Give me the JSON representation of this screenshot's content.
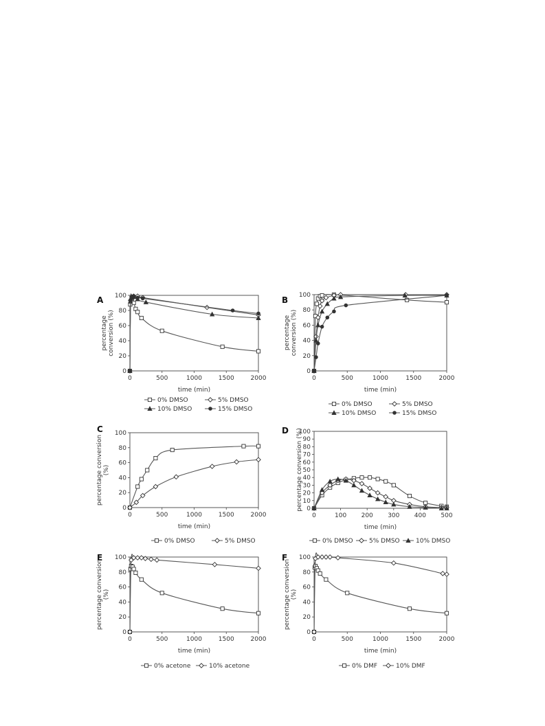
{
  "chart_data": [
    {
      "panel": "A",
      "type": "line",
      "xlabel": "time (min)",
      "ylabel": [
        "percentage",
        "conversion (%)"
      ],
      "xlim": [
        0,
        2000
      ],
      "ylim": [
        0,
        100
      ],
      "xticks": [
        0,
        500,
        1000,
        1500,
        2000
      ],
      "yticks": [
        0,
        20,
        40,
        60,
        80,
        100
      ],
      "legend": "bottom",
      "series": [
        {
          "name": "0% DMSO",
          "marker": "square",
          "x": [
            0,
            5,
            15,
            30,
            60,
            90,
            120,
            180,
            500,
            1440,
            2000
          ],
          "y": [
            0,
            88,
            92,
            92,
            90,
            82,
            78,
            70,
            53,
            32,
            26
          ]
        },
        {
          "name": "5% DMSO",
          "marker": "diamond",
          "x": [
            0,
            10,
            30,
            60,
            120,
            200,
            1200,
            2000
          ],
          "y": [
            0,
            93,
            98,
            99,
            99,
            97,
            84,
            74
          ]
        },
        {
          "name": "10% DMSO",
          "marker": "triangle",
          "x": [
            0,
            10,
            30,
            60,
            120,
            250,
            1280,
            2000
          ],
          "y": [
            0,
            92,
            97,
            98,
            95,
            91,
            75,
            70
          ]
        },
        {
          "name": "15% DMSO",
          "marker": "dot",
          "x": [
            0,
            10,
            30,
            60,
            120,
            200,
            1600,
            2000
          ],
          "y": [
            0,
            94,
            98,
            99,
            97,
            96,
            80,
            76
          ]
        }
      ]
    },
    {
      "panel": "B",
      "type": "line",
      "xlabel": "time (min)",
      "ylabel": [
        "percentage",
        "conversion (%)"
      ],
      "xlim": [
        0,
        2000
      ],
      "ylim": [
        0,
        100
      ],
      "xticks": [
        0,
        500,
        1000,
        1500,
        2000
      ],
      "yticks": [
        0,
        20,
        40,
        60,
        80,
        100
      ],
      "legend": "bottom",
      "series": [
        {
          "name": "0% DMSO",
          "marker": "square",
          "x": [
            0,
            20,
            40,
            60,
            90,
            120,
            300,
            1400,
            2000
          ],
          "y": [
            0,
            72,
            88,
            95,
            98,
            99,
            100,
            93,
            90
          ]
        },
        {
          "name": "5% DMSO",
          "marker": "diamond",
          "x": [
            0,
            30,
            60,
            90,
            120,
            180,
            300,
            400,
            1380,
            2000
          ],
          "y": [
            0,
            45,
            70,
            85,
            92,
            96,
            99,
            100,
            100,
            100
          ]
        },
        {
          "name": "10% DMSO",
          "marker": "triangle",
          "x": [
            0,
            30,
            60,
            120,
            200,
            300,
            400,
            1370,
            2000
          ],
          "y": [
            0,
            40,
            60,
            78,
            88,
            95,
            97,
            99,
            99
          ]
        },
        {
          "name": "15% DMSO",
          "marker": "dot",
          "x": [
            0,
            30,
            60,
            120,
            200,
            300,
            480,
            2000
          ],
          "y": [
            0,
            18,
            36,
            58,
            70,
            78,
            86,
            99
          ]
        }
      ]
    },
    {
      "panel": "C",
      "type": "line",
      "xlabel": "time (min)",
      "ylabel": [
        "percentage conversion",
        "(%)"
      ],
      "xlim": [
        0,
        2000
      ],
      "ylim": [
        0,
        100
      ],
      "xticks": [
        0,
        500,
        1000,
        1500,
        2000
      ],
      "yticks": [
        0,
        20,
        40,
        60,
        80,
        100
      ],
      "legend": "bottom",
      "series": [
        {
          "name": "0% DMSO",
          "marker": "square",
          "x": [
            0,
            120,
            180,
            270,
            400,
            660,
            1770,
            2000
          ],
          "y": [
            0,
            28,
            38,
            50,
            66,
            77,
            82,
            82
          ]
        },
        {
          "name": "5% DMSO",
          "marker": "diamond",
          "x": [
            0,
            100,
            200,
            400,
            720,
            1280,
            1660,
            2000
          ],
          "y": [
            0,
            7,
            16,
            28,
            41,
            55,
            61,
            64
          ]
        }
      ]
    },
    {
      "panel": "D",
      "type": "line",
      "xlabel": "time (min)",
      "ylabel": [
        "percentage conversion (%)"
      ],
      "xlim": [
        0,
        500
      ],
      "ylim": [
        0,
        100
      ],
      "xticks": [
        0,
        100,
        200,
        300,
        400,
        500
      ],
      "yticks": [
        0,
        10,
        20,
        30,
        40,
        50,
        60,
        70,
        80,
        90,
        100
      ],
      "legend": "bottom",
      "series": [
        {
          "name": "0% DMSO",
          "marker": "square",
          "x": [
            0,
            30,
            60,
            90,
            120,
            150,
            180,
            210,
            240,
            270,
            300,
            360,
            420,
            480,
            500
          ],
          "y": [
            0,
            17,
            27,
            33,
            37,
            39,
            40,
            40,
            38,
            35,
            30,
            16,
            7,
            3,
            2
          ]
        },
        {
          "name": "5% DMSO",
          "marker": "diamond",
          "x": [
            0,
            30,
            60,
            90,
            120,
            150,
            180,
            210,
            240,
            270,
            300,
            360,
            420,
            480,
            500
          ],
          "y": [
            0,
            20,
            30,
            36,
            38,
            36,
            32,
            26,
            20,
            15,
            10,
            5,
            2,
            1,
            1
          ]
        },
        {
          "name": "10% DMSO",
          "marker": "triangle",
          "x": [
            0,
            30,
            60,
            90,
            120,
            150,
            180,
            210,
            240,
            270,
            300,
            360,
            420,
            480,
            500
          ],
          "y": [
            0,
            24,
            35,
            38,
            36,
            30,
            23,
            17,
            12,
            8,
            5,
            2,
            1,
            0,
            0
          ]
        }
      ]
    },
    {
      "panel": "E",
      "type": "line",
      "xlabel": "time (min)",
      "ylabel": [
        "percentage conversion",
        "(%)"
      ],
      "xlim": [
        0,
        2000
      ],
      "ylim": [
        0,
        100
      ],
      "xticks": [
        0,
        500,
        1000,
        1500,
        2000
      ],
      "yticks": [
        0,
        20,
        40,
        60,
        80,
        100
      ],
      "legend": "bottom",
      "series": [
        {
          "name": "0% acetone",
          "marker": "square",
          "x": [
            0,
            10,
            20,
            40,
            60,
            90,
            180,
            500,
            1440,
            2000
          ],
          "y": [
            0,
            84,
            88,
            87,
            84,
            79,
            70,
            52,
            31,
            25
          ]
        },
        {
          "name": "10% acetone",
          "marker": "diamond",
          "x": [
            0,
            20,
            60,
            120,
            180,
            240,
            330,
            420,
            1320,
            2000
          ],
          "y": [
            0,
            96,
            99,
            99,
            99,
            98,
            97,
            96,
            90,
            85
          ]
        }
      ]
    },
    {
      "panel": "F",
      "type": "line",
      "xlabel": "time (min)",
      "ylabel": [
        "percentage conversion",
        "(%)"
      ],
      "xlim": [
        0,
        2000
      ],
      "ylim": [
        0,
        100
      ],
      "xticks": [
        0,
        500,
        1000,
        1500,
        2000
      ],
      "yticks": [
        0,
        20,
        40,
        60,
        80,
        100
      ],
      "legend": "bottom",
      "series": [
        {
          "name": "0% DMF",
          "marker": "square",
          "x": [
            0,
            10,
            20,
            40,
            60,
            90,
            180,
            500,
            1440,
            2000
          ],
          "y": [
            0,
            86,
            88,
            85,
            82,
            78,
            70,
            52,
            31,
            25
          ]
        },
        {
          "name": "10% DMF",
          "marker": "diamond",
          "x": [
            0,
            20,
            60,
            120,
            180,
            240,
            360,
            1200,
            1940,
            2000
          ],
          "y": [
            0,
            98,
            100,
            100,
            100,
            100,
            99,
            92,
            78,
            77
          ]
        }
      ]
    }
  ]
}
